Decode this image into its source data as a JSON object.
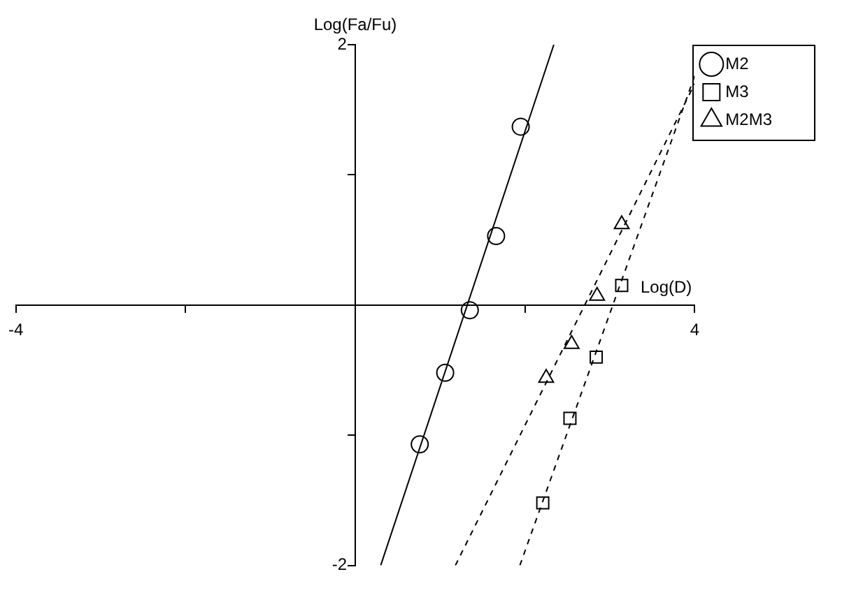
{
  "chart_data": {
    "type": "scatter",
    "xlabel": "Log(D)",
    "ylabel": "Log(Fa/Fu)",
    "xlim": [
      -4,
      4
    ],
    "ylim": [
      -2,
      2
    ],
    "xticks": [
      -4,
      {
        "value": -2,
        "label": null
      },
      {
        "value": 0,
        "label": null
      },
      {
        "value": 2,
        "label": null
      },
      4
    ],
    "yticks": [
      -2,
      {
        "value": -1,
        "label": null
      },
      {
        "value": 0,
        "label": null
      },
      {
        "value": 1,
        "label": null
      },
      2
    ],
    "grid": false,
    "legend": "top right",
    "series": [
      {
        "name": "M2",
        "type": "scatter",
        "marker": "circle",
        "color": "#000000",
        "x": [
          0.76,
          1.06,
          1.35,
          1.66,
          1.95
        ],
        "values": [
          -1.07,
          -0.52,
          -0.04,
          0.53,
          1.37
        ]
      },
      {
        "name": "M3",
        "type": "scatter",
        "marker": "square",
        "color": "#000000",
        "x": [
          2.21,
          2.53,
          2.84,
          3.14
        ],
        "values": [
          -1.52,
          -0.87,
          -0.4,
          0.15
        ]
      },
      {
        "name": "M2M3",
        "type": "scatter",
        "marker": "triangle",
        "color": "#000000",
        "x": [
          2.25,
          2.55,
          2.85,
          3.14
        ],
        "values": [
          -0.56,
          -0.3,
          0.07,
          0.62
        ]
      },
      {
        "type": "line",
        "marker": "none",
        "line_style": "solid",
        "color": "#000000",
        "x": [
          0.3,
          2.34
        ],
        "values": [
          -2,
          2
        ]
      },
      {
        "type": "line",
        "marker": "none",
        "line_style": "dashed",
        "color": "#000000",
        "x": [
          1.94,
          4
        ],
        "values": [
          -2,
          1.76
        ]
      },
      {
        "type": "line",
        "marker": "none",
        "line_style": "dashed",
        "color": "#000000",
        "x": [
          1.18,
          4.0
        ],
        "values": [
          -2,
          1.7
        ]
      }
    ]
  }
}
